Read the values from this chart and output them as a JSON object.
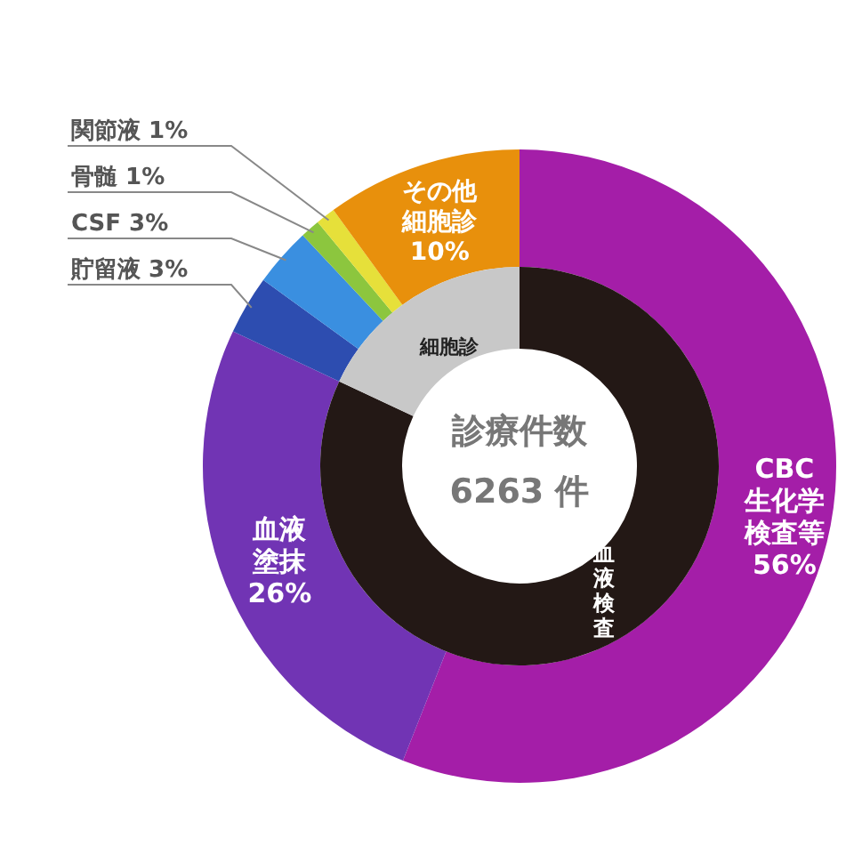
{
  "chart_data": [
    {
      "type": "donut",
      "categories": [
        "CBC生化学検査等",
        "血液塗抹",
        "貯留液",
        "CSF",
        "骨髄",
        "関節液",
        "その他細胞診"
      ],
      "values": [
        56,
        26,
        3,
        3,
        1,
        1,
        10
      ],
      "colors": [
        "#a41ea8",
        "#7134b4",
        "#2d4db0",
        "#3a8fe0",
        "#8cc63e",
        "#e6e03a",
        "#e8900c"
      ],
      "value_labels": [
        "56%",
        "26%",
        "3%",
        "3%",
        "1%",
        "1%",
        "10%"
      ],
      "annotations": [
        "診療件数",
        "6263 件"
      ]
    },
    {
      "type": "donut",
      "categories": [
        "血液検査",
        "細胞診"
      ],
      "values": [
        82,
        18
      ],
      "colors": [
        "#231815",
        "#c8c8c8"
      ]
    }
  ]
}
